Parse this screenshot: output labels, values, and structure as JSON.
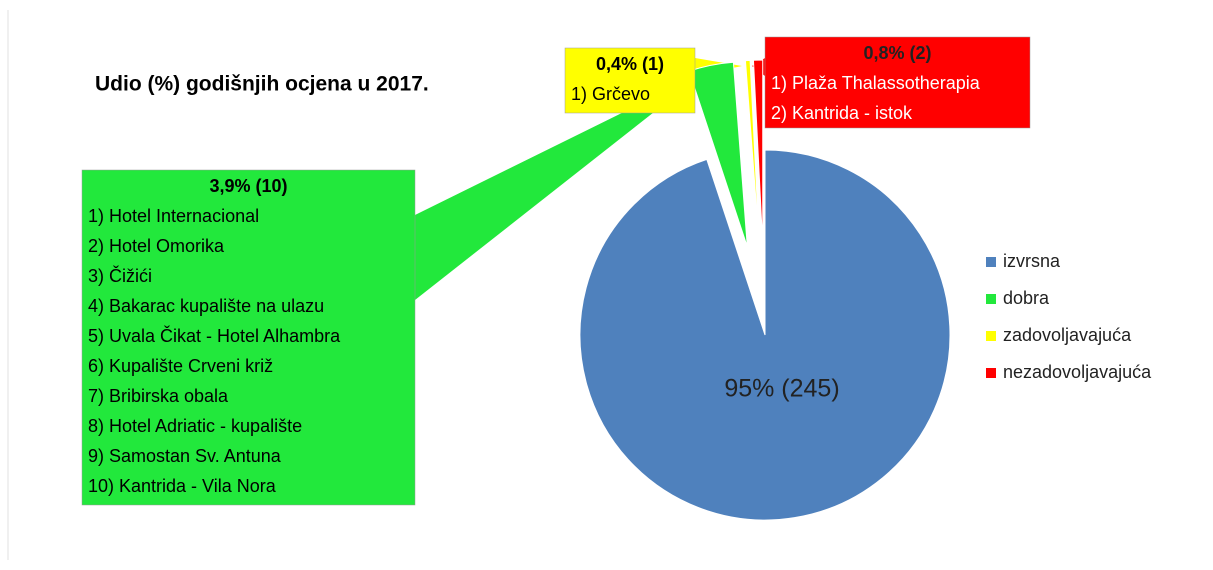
{
  "chart_data": {
    "type": "pie",
    "title": "Udio (%) godišnjih ocjena u 2017.",
    "categories": [
      "izvrsna",
      "dobra",
      "zadovoljavajuća",
      "nezadovoljavajuća"
    ],
    "values": [
      95,
      3.9,
      0.4,
      0.8
    ],
    "value_labels": [
      "95% (245)",
      "3,9% (10)",
      "0,4% (1)",
      "0,8% (2)"
    ],
    "colors": [
      "#4f81bd",
      "#22e83c",
      "#ffff00",
      "#ff0000"
    ],
    "items": [
      null,
      [
        "1) Hotel Internacional",
        "2) Hotel Omorika",
        "3) Čižići",
        "4) Bakarac kupalište na ulazu",
        "5) Uvala Čikat - Hotel Alhambra",
        "6) Kupalište Crveni križ",
        "7) Bribirska obala",
        "8) Hotel Adriatic - kupalište",
        "9) Samostan Sv. Antuna",
        "10) Kantrida - Vila Nora"
      ],
      [
        "1) Grčevo"
      ],
      [
        "1) Plaža Thalassotherapia",
        "2) Kantrida - istok"
      ]
    ],
    "legend": "right"
  }
}
